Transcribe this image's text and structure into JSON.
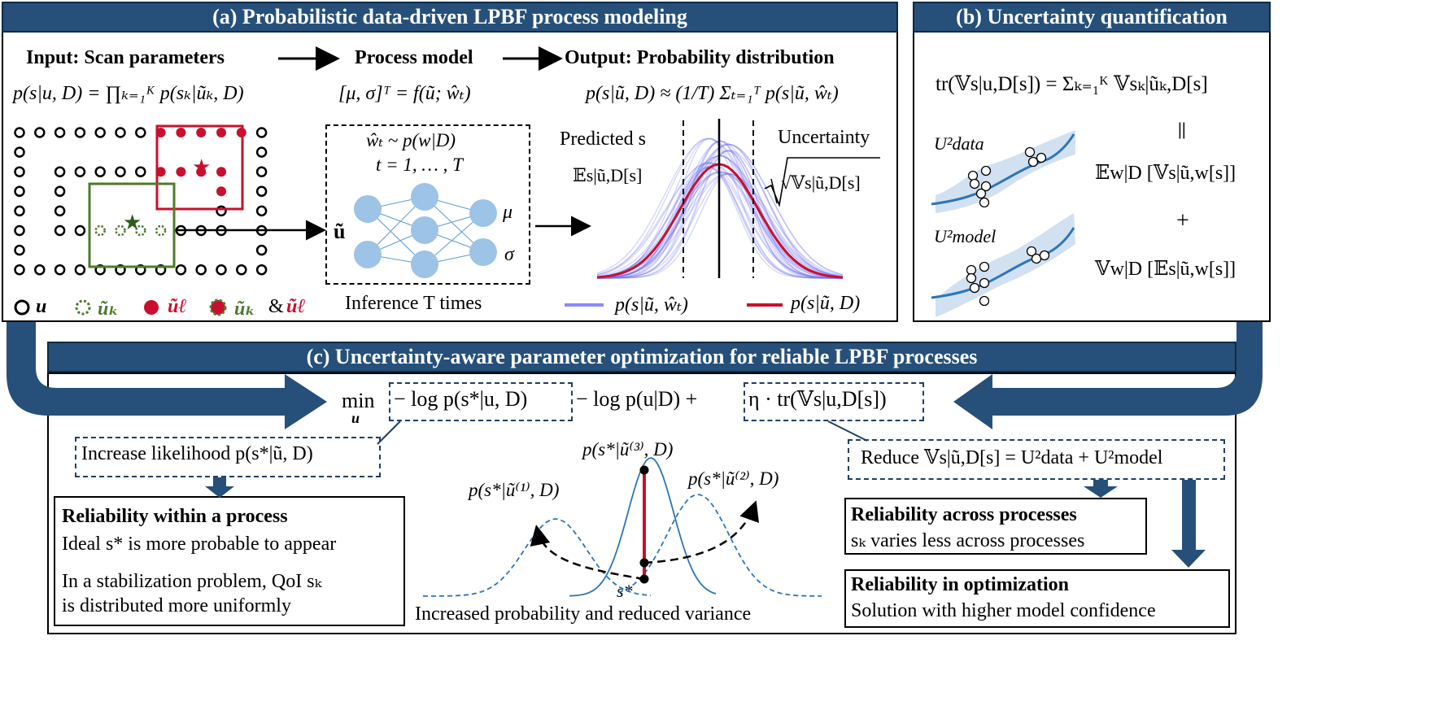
{
  "panel_a": {
    "title": "(a) Probabilistic data-driven LPBF process modeling",
    "input_label": "Input: Scan parameters",
    "process_label": "Process model",
    "output_label": "Output: Probability distribution",
    "eq_input": "p(s|u, D) = ∏ₖ₌₁ᴷ p(sₖ|ũₖ, D)",
    "eq_model": "[μ, σ]ᵀ = f(ũ; ŵₜ)",
    "eq_output": "p(s|ũ, D) ≈ (1/T) Σₜ₌₁ᵀ p(s|ũ, ŵₜ)",
    "nn_sample": "ŵₜ ~ p(w|D)",
    "nn_range": "t = 1, … , T",
    "nn_input": "ũ",
    "nn_out_mu": "μ",
    "nn_out_sigma": "σ",
    "inference_caption": "Inference T times",
    "predicted_label": "Predicted s",
    "predicted_expr": "𝔼s|ũ,D[s]",
    "uncertainty_label": "Uncertainty",
    "uncertainty_expr": "√𝕍s|ũ,D[s]",
    "legend": {
      "u": "u",
      "uk": "ũₖ",
      "ul": "ũℓ",
      "both_a": "ũₖ",
      "amp": "&",
      "both_b": "ũℓ",
      "line_blue": "p(s|ũ, ŵₜ)",
      "line_red": "p(s|ũ, D)"
    }
  },
  "panel_b": {
    "title": "(b) Uncertainty quantification",
    "eq_trace": "tr(𝕍s|u,D[s]) = Σₖ₌₁ᴷ 𝕍sₖ|ũₖ,D[s]",
    "equals": "||",
    "eq_data_term": "𝔼w|D [𝕍s|ũ,w[s]]",
    "plus": "+",
    "eq_model_term": "𝕍w|D [𝔼s|ũ,w[s]]",
    "u_data": "U²data",
    "u_model": "U²model"
  },
  "panel_c": {
    "title": "(c) Uncertainty-aware parameter optimization for reliable LPBF processes",
    "objective_min": "min",
    "objective_var": "u",
    "objective_term1": "− log p(s*|u, D)",
    "objective_term2": "− log p(u|D) +",
    "objective_term3": "η · tr(𝕍s|u,D[s])",
    "increase_likelihood": "Increase likelihood p(s*|ũ, D)",
    "reduce_variance": "Reduce 𝕍s|ũ,D[s] = U²data + U²model",
    "within_title": "Reliability within a process",
    "within_line1": "Ideal s* is more probable to appear",
    "within_line2": "In a stabilization problem, QoI sₖ",
    "within_line3": "is distributed more uniformly",
    "across_title": "Reliability across processes",
    "across_line1": "sₖ varies less across processes",
    "opt_title": "Reliability in optimization",
    "opt_line1": "Solution with higher model confidence",
    "curve_label_1": "p(s*|ũ⁽¹⁾, D)",
    "curve_label_2": "p(s*|ũ⁽²⁾, D)",
    "curve_label_3": "p(s*|ũ⁽³⁾, D)",
    "s_star": "s*",
    "center_caption": "Increased probability and reduced variance"
  },
  "colors": {
    "header": "#26507a",
    "arrow": "#26507a",
    "red": "#c8102e",
    "green": "#4e7a2c",
    "nn_node": "#9dc3e6",
    "curve_blue": "#2e75b6",
    "dash_box": "#1f3f66"
  }
}
